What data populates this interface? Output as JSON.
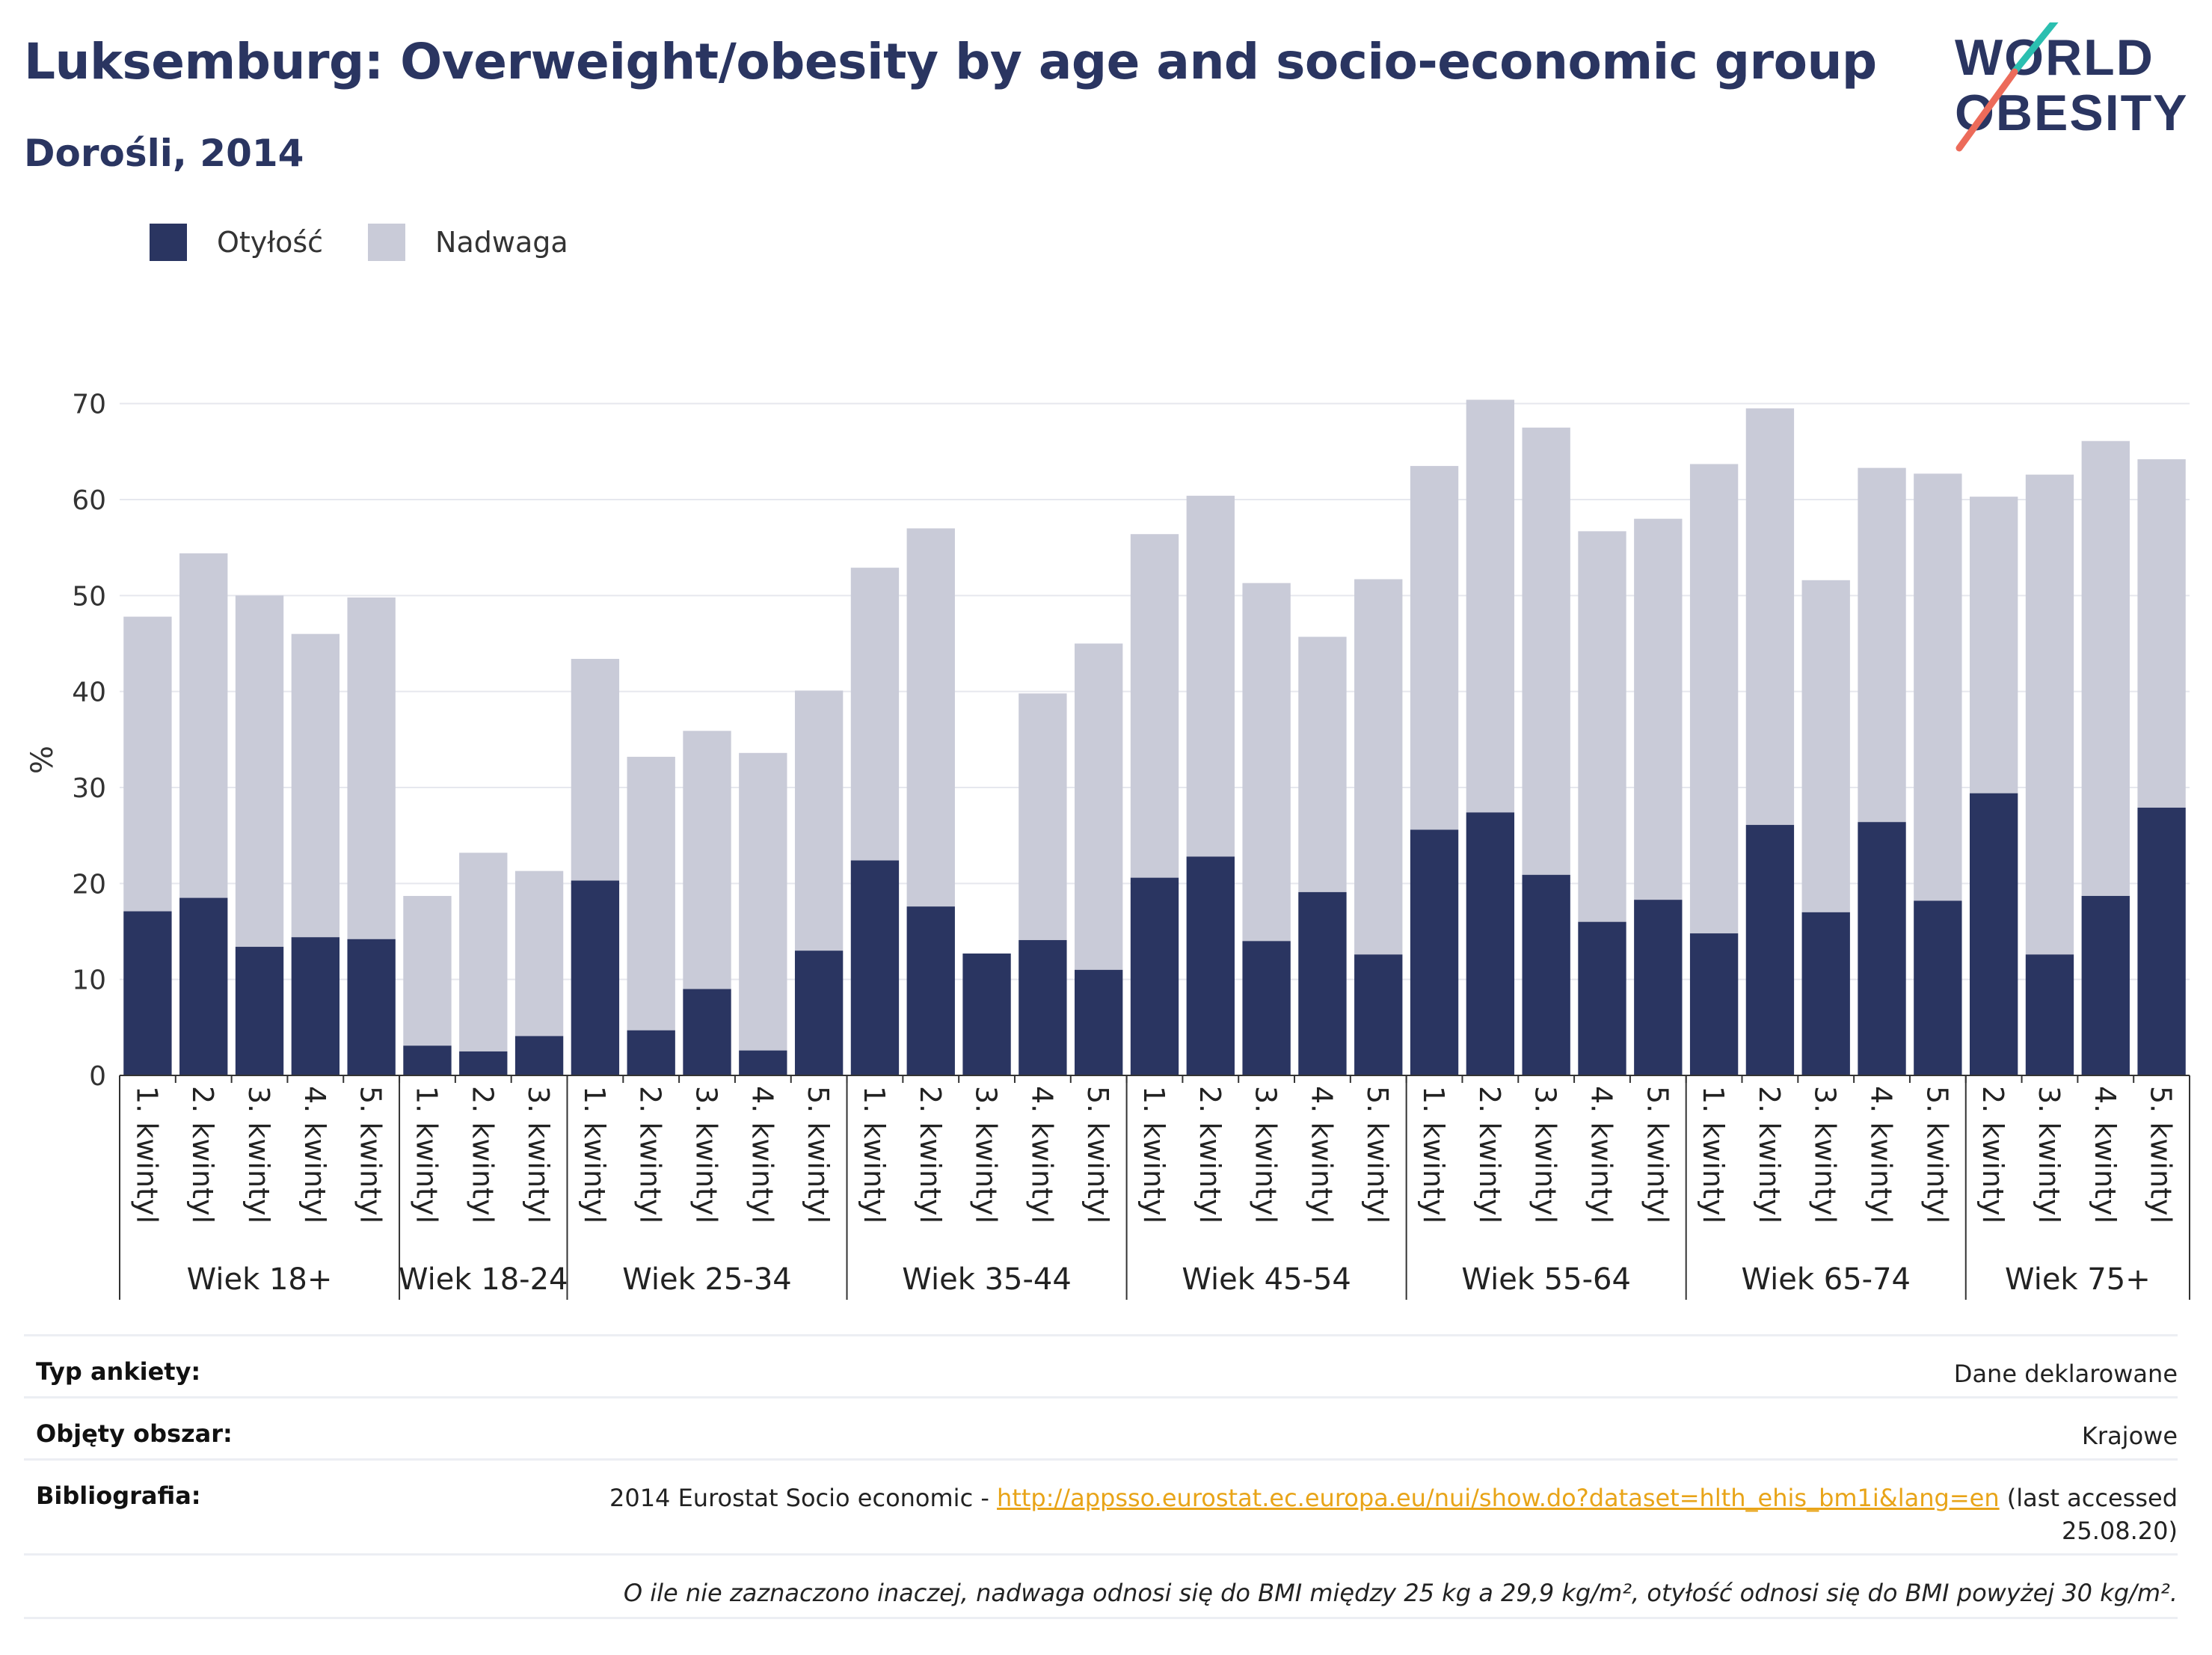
{
  "title": "Luksemburg: Overweight/obesity by age and socio-economic group",
  "subtitle": "Dorośli, 2014",
  "logo": {
    "line1": "WORLD",
    "line2": "OBESITY"
  },
  "legend": [
    {
      "label": "Otyłość",
      "color": "#2a3561"
    },
    {
      "label": "Nadwaga",
      "color": "#c9cbd8"
    }
  ],
  "chart_data": {
    "type": "bar",
    "stacked": true,
    "ylabel": "%",
    "ylim": [
      0,
      72
    ],
    "yticks": [
      0,
      10,
      20,
      30,
      40,
      50,
      60,
      70
    ],
    "grid": true,
    "legend_position": "top-left",
    "groups": [
      {
        "label": "Wiek 18+",
        "categories": [
          "1. kwintyl",
          "2. kwintyl",
          "3. kwintyl",
          "4. kwintyl",
          "5. kwintyl"
        ],
        "obesity": [
          17.1,
          18.5,
          13.4,
          14.4,
          14.2
        ],
        "overweight": [
          30.7,
          35.9,
          36.6,
          31.6,
          35.6
        ]
      },
      {
        "label": "Wiek 18-24",
        "categories": [
          "1. kwintyl",
          "2. kwintyl",
          "3. kwintyl"
        ],
        "obesity": [
          3.1,
          2.5,
          4.1
        ],
        "overweight": [
          15.6,
          20.7,
          17.2
        ]
      },
      {
        "label": "Wiek 25-34",
        "categories": [
          "1. kwintyl",
          "2. kwintyl",
          "3. kwintyl",
          "4. kwintyl",
          "5. kwintyl"
        ],
        "obesity": [
          20.3,
          4.7,
          9.0,
          2.6,
          13.0
        ],
        "overweight": [
          23.1,
          28.5,
          26.9,
          31.0,
          27.1
        ]
      },
      {
        "label": "Wiek 35-44",
        "categories": [
          "1. kwintyl",
          "2. kwintyl",
          "3. kwintyl",
          "4. kwintyl",
          "5. kwintyl"
        ],
        "obesity": [
          22.4,
          17.6,
          12.7,
          14.1,
          11.0
        ],
        "overweight": [
          30.5,
          39.4,
          0,
          25.7,
          34.0
        ]
      },
      {
        "label": "Wiek 45-54",
        "categories": [
          "1. kwintyl",
          "2. kwintyl",
          "3. kwintyl",
          "4. kwintyl",
          "5. kwintyl"
        ],
        "obesity": [
          20.6,
          22.8,
          14.0,
          19.1,
          12.6
        ],
        "overweight": [
          35.8,
          37.6,
          37.3,
          26.6,
          39.1
        ]
      },
      {
        "label": "Wiek 55-64",
        "categories": [
          "1. kwintyl",
          "2. kwintyl",
          "3. kwintyl",
          "4. kwintyl",
          "5. kwintyl"
        ],
        "obesity": [
          25.6,
          27.4,
          20.9,
          16.0,
          18.3
        ],
        "overweight": [
          37.9,
          43.0,
          46.6,
          40.7,
          39.7
        ]
      },
      {
        "label": "Wiek 65-74",
        "categories": [
          "1. kwintyl",
          "2. kwintyl",
          "3. kwintyl",
          "4. kwintyl",
          "5. kwintyl"
        ],
        "obesity": [
          14.8,
          26.1,
          17.0,
          26.4,
          18.2
        ],
        "overweight": [
          48.9,
          43.4,
          34.6,
          36.9,
          44.5
        ]
      },
      {
        "label": "Wiek 75+",
        "categories": [
          "2. kwintyl",
          "3. kwintyl",
          "4. kwintyl",
          "5. kwintyl"
        ],
        "obesity": [
          29.4,
          12.6,
          18.7,
          27.9
        ],
        "overweight": [
          30.9,
          50.0,
          47.4,
          36.3
        ]
      }
    ]
  },
  "info": {
    "survey_type_label": "Typ ankiety:",
    "survey_type_value": "Dane deklarowane",
    "coverage_label": "Objęty obszar:",
    "coverage_value": "Krajowe",
    "bibliography_label": "Bibliografia:",
    "bibliography_prefix": "2014 Eurostat Socio economic - ",
    "bibliography_link": "http://appsso.eurostat.ec.europa.eu/nui/show.do?dataset=hlth_ehis_bm1i&lang=en",
    "bibliography_suffix": " (last accessed",
    "bibliography_date": "25.08.20)",
    "note": "O ile nie zaznaczono inaczej, nadwaga odnosi się do BMI między 25 kg a 29,9 kg/m², otyłość odnosi się do BMI powyżej 30 kg/m²."
  }
}
